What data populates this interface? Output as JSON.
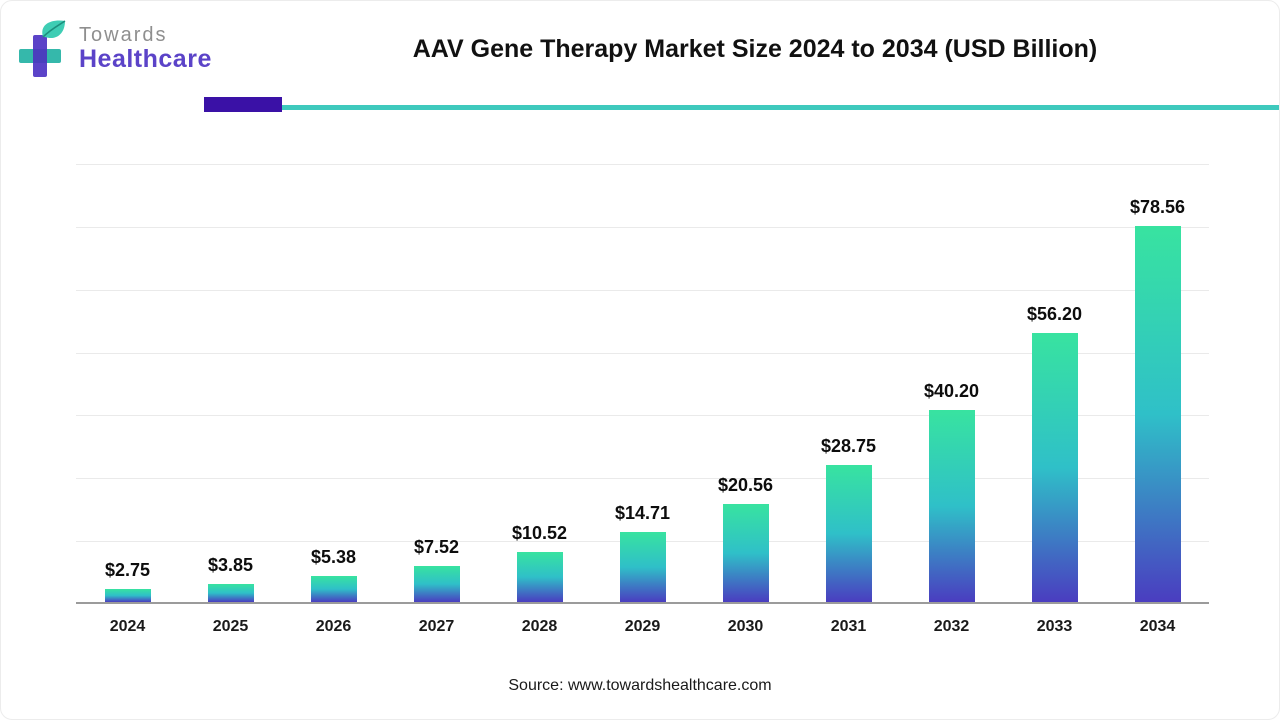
{
  "header": {
    "brand": {
      "line1": "Towards",
      "line2": "Healthcare"
    },
    "title": "AAV Gene Therapy Market Size 2024 to 2034 (USD Billion)"
  },
  "colors": {
    "brand_purple": "#5b43c8",
    "divider_purple": "#3a11a6",
    "divider_teal": "#3ec9bd",
    "bar_gradient_top": "#38e3a0",
    "bar_gradient_mid": "#2fc0c8",
    "bar_gradient_bottom": "#4a3dc0"
  },
  "chart_data": {
    "type": "bar",
    "title": "AAV Gene Therapy Market Size 2024 to 2034 (USD Billion)",
    "categories": [
      "2024",
      "2025",
      "2026",
      "2027",
      "2028",
      "2029",
      "2030",
      "2031",
      "2032",
      "2033",
      "2034"
    ],
    "values": [
      2.75,
      3.85,
      5.38,
      7.52,
      10.52,
      14.71,
      20.56,
      28.75,
      40.2,
      56.2,
      78.56
    ],
    "value_labels": [
      "$2.75",
      "$3.85",
      "$5.38",
      "$7.52",
      "$10.52",
      "$14.71",
      "$20.56",
      "$28.75",
      "$40.20",
      "$56.20",
      "$78.56"
    ],
    "xlabel": "",
    "ylabel": "",
    "ylim": [
      0,
      92
    ],
    "grid": true,
    "gridline_intervals": 7,
    "legend": "none"
  },
  "footer": {
    "source": "Source: www.towardshealthcare.com"
  }
}
